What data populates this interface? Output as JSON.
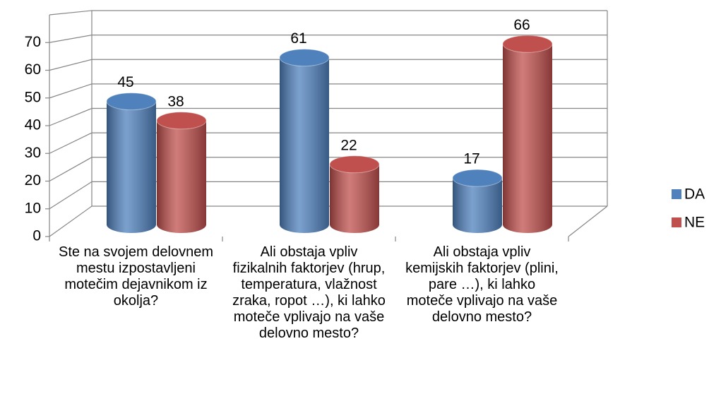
{
  "chart_data": {
    "type": "bar3d",
    "categories": [
      "Ste na svojem delovnem mestu izpostavljeni motečim dejavnikom iz okolja?",
      "Ali obstaja vpliv fizikalnih faktorjev (hrup, temperatura, vlažnost zraka, ropot …), ki lahko moteče vplivajo na vaše delovno mesto?",
      "Ali obstaja vpliv kemijskih faktorjev (plini, pare …), ki lahko moteče vplivajo na vaše delovno mesto?"
    ],
    "series": [
      {
        "name": "DA",
        "color": "#4f81bd",
        "values": [
          45,
          61,
          17
        ]
      },
      {
        "name": "NE",
        "color": "#c0504d",
        "values": [
          38,
          22,
          66
        ]
      }
    ],
    "ylim": [
      0,
      80
    ],
    "yticks": [
      0,
      10,
      20,
      30,
      40,
      50,
      60,
      70
    ],
    "grid": true,
    "legend": "right"
  }
}
